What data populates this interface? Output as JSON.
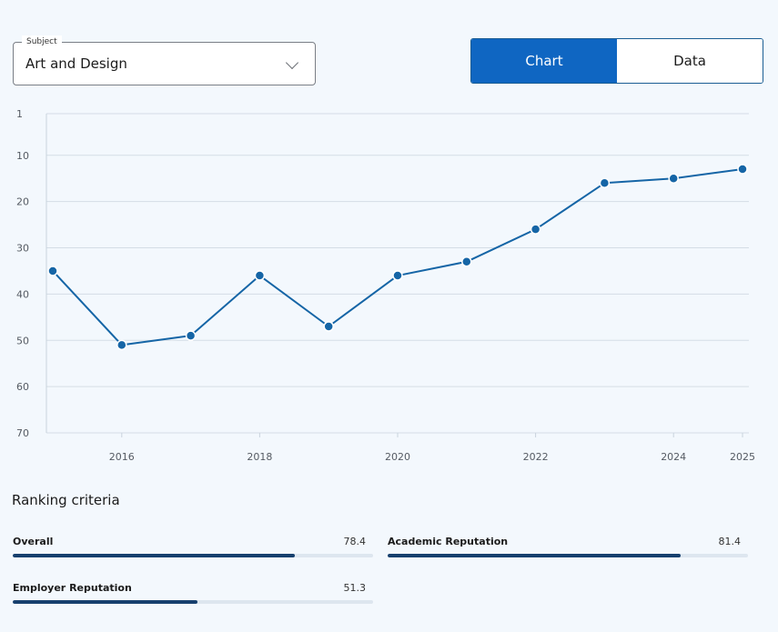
{
  "subject": {
    "legend": "Subject",
    "value": "Art and Design"
  },
  "toggle": {
    "chart_label": "Chart",
    "data_label": "Data",
    "active": "chart"
  },
  "colors": {
    "accent": "#0f66c2",
    "line": "#1565a6",
    "bar": "#17406e"
  },
  "chart_data": {
    "type": "line",
    "x": [
      2015,
      2016,
      2017,
      2018,
      2019,
      2020,
      2021,
      2022,
      2023,
      2024,
      2025
    ],
    "series": [
      {
        "values": [
          35,
          51,
          49,
          36,
          47,
          36,
          33,
          26,
          16,
          15,
          13
        ]
      }
    ],
    "x_ticks": [
      "2016",
      "2018",
      "2020",
      "2022",
      "2024",
      "2025"
    ],
    "y_ticks": [
      "1",
      "10",
      "20",
      "30",
      "40",
      "50",
      "60",
      "70"
    ],
    "ylim": [
      1,
      70
    ],
    "y_inverted": true,
    "xlim": [
      2015,
      2025
    ],
    "grid": "horizontal"
  },
  "criteria": {
    "title": "Ranking criteria",
    "items": [
      {
        "label": "Overall",
        "value": "78.4",
        "fraction": 0.784
      },
      {
        "label": "Academic Reputation",
        "value": "81.4",
        "fraction": 0.814
      },
      {
        "label": "Employer Reputation",
        "value": "51.3",
        "fraction": 0.513
      }
    ]
  }
}
